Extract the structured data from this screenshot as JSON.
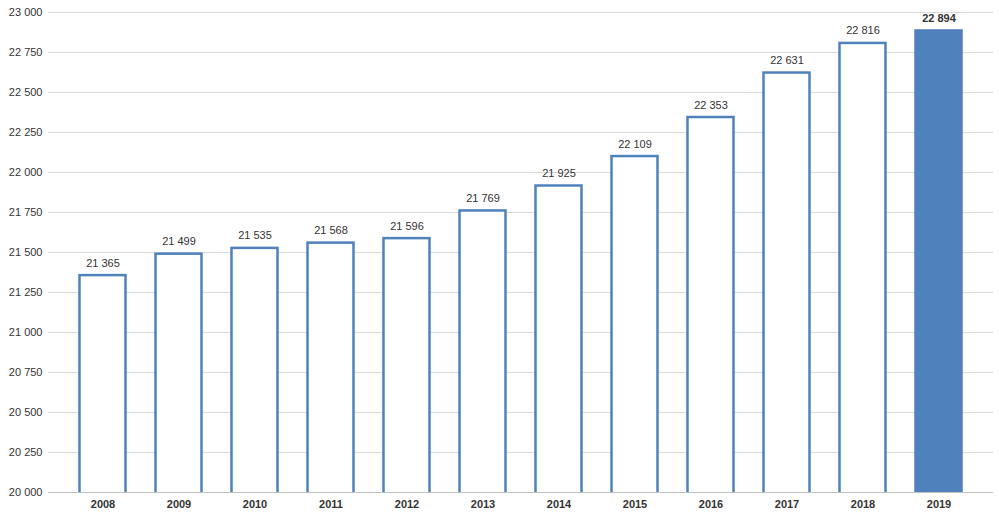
{
  "chart_data": {
    "type": "bar",
    "categories": [
      "2008",
      "2009",
      "2010",
      "2011",
      "2012",
      "2013",
      "2014",
      "2015",
      "2016",
      "2017",
      "2018",
      "2019"
    ],
    "values": [
      21365,
      21499,
      21535,
      21568,
      21596,
      21769,
      21925,
      22109,
      22353,
      22631,
      22816,
      22894
    ],
    "value_labels": [
      "21 365",
      "21 499",
      "21 535",
      "21 568",
      "21 596",
      "21 769",
      "21 925",
      "22 109",
      "22 353",
      "22 631",
      "22 816",
      "22 894"
    ],
    "color": "#4f81bd",
    "colors": [
      "#ffffff",
      "#ffffff",
      "#ffffff",
      "#ffffff",
      "#ffffff",
      "#ffffff",
      "#ffffff",
      "#ffffff",
      "#ffffff",
      "#ffffff",
      "#ffffff",
      "#4f81bd"
    ],
    "ylim": [
      20000,
      23000
    ],
    "yticks": [
      {
        "value": 20000,
        "label": "20 000"
      },
      {
        "value": 20250,
        "label": "20 250"
      },
      {
        "value": 20500,
        "label": "20 500"
      },
      {
        "value": 20750,
        "label": "20 750"
      },
      {
        "value": 21000,
        "label": "21 000"
      },
      {
        "value": 21250,
        "label": "21 250"
      },
      {
        "value": 21500,
        "label": "21 500"
      },
      {
        "value": 21750,
        "label": "21 750"
      },
      {
        "value": 22000,
        "label": "22 000"
      },
      {
        "value": 22250,
        "label": "22 250"
      },
      {
        "value": 22500,
        "label": "22 500"
      },
      {
        "value": 22750,
        "label": "22 750"
      },
      {
        "value": 23000,
        "label": "23 000"
      }
    ],
    "grid": true,
    "data_labels": true
  }
}
